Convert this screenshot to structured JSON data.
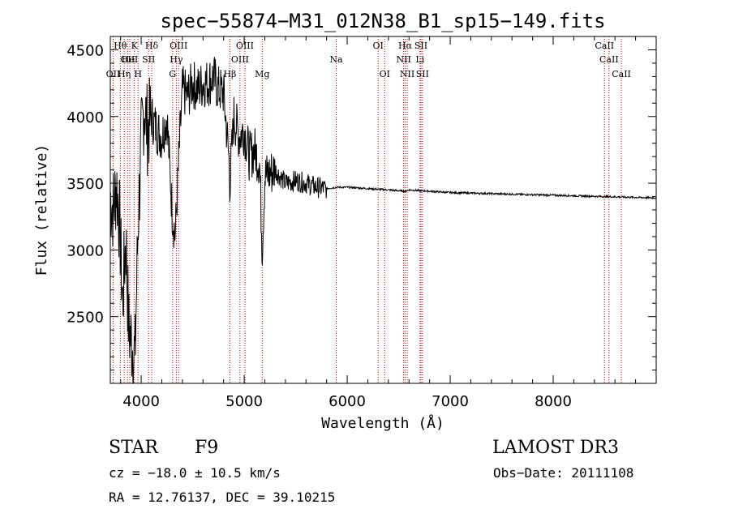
{
  "chart_data": {
    "type": "line",
    "title": "spec−55874−M31_012N38_B1_sp15−149.fits",
    "xlabel": "Wavelength (Å)",
    "ylabel": "Flux (relative)",
    "xlim": [
      3700,
      9000
    ],
    "ylim": [
      2000,
      4600
    ],
    "xticks": [
      4000,
      5000,
      6000,
      7000,
      8000
    ],
    "yticks": [
      2500,
      3000,
      3500,
      4000,
      4500
    ],
    "grid": false,
    "series": [
      {
        "name": "flux",
        "color": "#000000",
        "x": [
          3700,
          3730,
          3760,
          3790,
          3820,
          3850,
          3880,
          3910,
          3940,
          3970,
          4000,
          4030,
          4060,
          4100,
          4150,
          4200,
          4250,
          4300,
          4330,
          4360,
          4400,
          4450,
          4500,
          4550,
          4600,
          4650,
          4700,
          4750,
          4800,
          4850,
          4861,
          4900,
          4950,
          5000,
          5050,
          5100,
          5150,
          5175,
          5200,
          5300,
          5400,
          5500,
          5600,
          5700,
          5800,
          5900,
          6000,
          6200,
          6400,
          6563,
          6600,
          6800,
          7000,
          7500,
          8000,
          8500,
          9000
        ],
        "y": [
          3400,
          3300,
          3500,
          3200,
          2600,
          3100,
          2400,
          2300,
          2200,
          3200,
          3800,
          4100,
          3900,
          4000,
          3900,
          3850,
          4000,
          3300,
          3100,
          3600,
          4200,
          4150,
          4250,
          4200,
          4250,
          4250,
          4300,
          4200,
          4180,
          3700,
          3500,
          4000,
          3850,
          3900,
          3700,
          3750,
          3650,
          3000,
          3550,
          3600,
          3500,
          3520,
          3500,
          3470,
          3460,
          3470,
          3470,
          3460,
          3450,
          3440,
          3450,
          3440,
          3430,
          3420,
          3410,
          3400,
          3390
        ]
      }
    ],
    "lines": [
      {
        "wave": 3727,
        "name": "OII",
        "row": 3
      },
      {
        "wave": 3797,
        "name": "Hθ",
        "row": 1
      },
      {
        "wave": 3835,
        "name": "Hη",
        "row": 3
      },
      {
        "wave": 3868,
        "name": "OII",
        "row": 2
      },
      {
        "wave": 3889,
        "name": "HeI",
        "row": 2
      },
      {
        "wave": 3934,
        "name": "K",
        "row": 1
      },
      {
        "wave": 3969,
        "name": "H",
        "row": 3
      },
      {
        "wave": 4072,
        "name": "SII",
        "row": 2
      },
      {
        "wave": 4102,
        "name": "Hδ",
        "row": 1
      },
      {
        "wave": 4305,
        "name": "G",
        "row": 3
      },
      {
        "wave": 4341,
        "name": "Hγ",
        "row": 2
      },
      {
        "wave": 4363,
        "name": "OIII",
        "row": 1
      },
      {
        "wave": 4861,
        "name": "Hβ",
        "row": 3
      },
      {
        "wave": 4959,
        "name": "OIII",
        "row": 2
      },
      {
        "wave": 5007,
        "name": "OIII",
        "row": 1
      },
      {
        "wave": 5175,
        "name": "Mg",
        "row": 3
      },
      {
        "wave": 5893,
        "name": "Na",
        "row": 2
      },
      {
        "wave": 6300,
        "name": "OI",
        "row": 1
      },
      {
        "wave": 6364,
        "name": "OI",
        "row": 3
      },
      {
        "wave": 6548,
        "name": "NII",
        "row": 2
      },
      {
        "wave": 6563,
        "name": "Hα",
        "row": 1
      },
      {
        "wave": 6583,
        "name": "NII",
        "row": 3
      },
      {
        "wave": 6707,
        "name": "Li",
        "row": 2
      },
      {
        "wave": 6716,
        "name": "SII",
        "row": 1
      },
      {
        "wave": 6731,
        "name": "SII",
        "row": 3
      },
      {
        "wave": 8498,
        "name": "CaII",
        "row": 1
      },
      {
        "wave": 8542,
        "name": "CaII",
        "row": 2
      },
      {
        "wave": 8662,
        "name": "CaII",
        "row": 3
      }
    ],
    "line_color": "#cc0000"
  },
  "info": {
    "class": "STAR",
    "subclass": "F9",
    "survey": "LAMOST DR3",
    "cz": "cz = −18.0 ± 10.5 km/s",
    "obs_date": "Obs−Date: 20111108",
    "radec": "RA =  12.76137, DEC =  39.10215"
  }
}
